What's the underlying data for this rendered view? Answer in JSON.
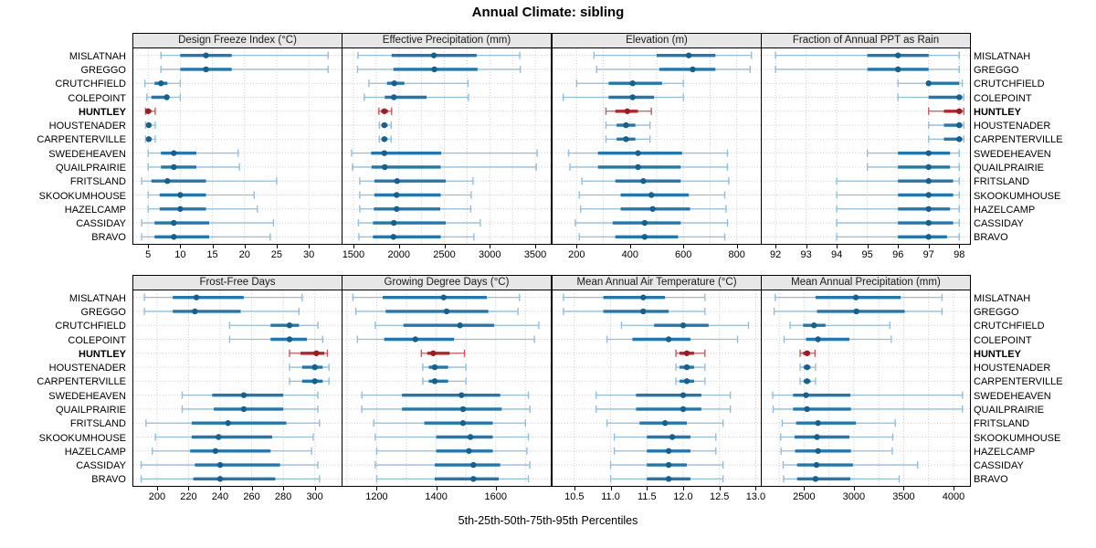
{
  "title": "Annual Climate: sibling",
  "xlabel": "5th-25th-50th-75th-95th Percentiles",
  "highlight_station": "HUNTLEY",
  "stations": [
    "MISLATNAH",
    "GREGGO",
    "CRUTCHFIELD",
    "COLEPOINT",
    "HUNTLEY",
    "HOUSTENADER",
    "CARPENTERVILLE",
    "SWEDEHEAVEN",
    "QUAILPRAIRIE",
    "FRITSLAND",
    "SKOOKUMHOUSE",
    "HAZELCAMP",
    "CASSIDAY",
    "BRAVO"
  ],
  "colors": {
    "blue": "#1f77b4",
    "blue_light": "#92bedc",
    "blue_dot": "#14618f",
    "red": "#b4232a",
    "red_light": "#c9575d",
    "red_dot": "#9c1b21",
    "grid": "#c8c8c8",
    "header_bg": "#e7e7e7",
    "panel_border": "#000000",
    "text": "#000000"
  },
  "chart_data": [
    {
      "type": "dotplot-range",
      "title": "Design Freeze Index (°C)",
      "percentiles": [
        5,
        25,
        50,
        75,
        95
      ],
      "xlim": [
        2.7,
        35.1
      ],
      "ticks": [
        5,
        10,
        15,
        20,
        25,
        30
      ],
      "tick_labels": [
        "5",
        "10",
        "15",
        "20",
        "25",
        "30"
      ],
      "grid": [
        5,
        10,
        15,
        20,
        25,
        30
      ],
      "values": [
        [
          7,
          10,
          14,
          18,
          33
        ],
        [
          7,
          10,
          14,
          18,
          33
        ],
        [
          4.5,
          6,
          7,
          8,
          10
        ],
        [
          4.8,
          5.5,
          7.9,
          8.2,
          10
        ],
        [
          4.6,
          4.8,
          5,
          5.5,
          6.1
        ],
        [
          4.6,
          4.9,
          5.1,
          5.4,
          6.1
        ],
        [
          4.6,
          4.9,
          5.1,
          5.5,
          6.1
        ],
        [
          5,
          7,
          9,
          12.5,
          19
        ],
        [
          5,
          7,
          9,
          12.5,
          19.2
        ],
        [
          4,
          5.5,
          8,
          14,
          25
        ],
        [
          5,
          6.8,
          10,
          14,
          21.5
        ],
        [
          5,
          6.8,
          10,
          14,
          22
        ],
        [
          4,
          6,
          9,
          14.5,
          24.5
        ],
        [
          4,
          6,
          9,
          14.5,
          24
        ]
      ]
    },
    {
      "type": "dotplot-range",
      "title": "Effective Precipitation (mm)",
      "percentiles": [
        5,
        25,
        50,
        75,
        95
      ],
      "xlim": [
        1380,
        3670
      ],
      "ticks": [
        1500,
        2000,
        2500,
        3000,
        3500
      ],
      "tick_labels": [
        "1500",
        "2000",
        "2500",
        "3000",
        "3500"
      ],
      "grid": [
        1500,
        1750,
        2000,
        2250,
        2500,
        2750,
        3000,
        3250,
        3500
      ],
      "values": [
        [
          1550,
          1920,
          2385,
          2855,
          3330
        ],
        [
          1545,
          1940,
          2390,
          2865,
          3335
        ],
        [
          1670,
          1870,
          1950,
          2060,
          2760
        ],
        [
          1620,
          1845,
          1945,
          2305,
          2765
        ],
        [
          1780,
          1805,
          1840,
          1880,
          1920
        ],
        [
          1785,
          1810,
          1840,
          1875,
          1915
        ],
        [
          1785,
          1810,
          1840,
          1875,
          1915
        ],
        [
          1480,
          1695,
          1840,
          2465,
          3520
        ],
        [
          1490,
          1700,
          1845,
          2460,
          3510
        ],
        [
          1570,
          1730,
          1980,
          2515,
          2815
        ],
        [
          1570,
          1730,
          1975,
          2460,
          2795
        ],
        [
          1570,
          1725,
          1975,
          2455,
          2790
        ],
        [
          1555,
          1715,
          1945,
          2515,
          2895
        ],
        [
          1560,
          1715,
          1940,
          2460,
          2825
        ]
      ]
    },
    {
      "type": "dotplot-range",
      "title": "Elevation (m)",
      "percentiles": [
        5,
        25,
        50,
        75,
        95
      ],
      "xlim": [
        110,
        890
      ],
      "ticks": [
        200,
        400,
        600,
        800
      ],
      "tick_labels": [
        "200",
        "400",
        "600",
        "800"
      ],
      "grid": [
        200,
        300,
        400,
        500,
        600,
        700,
        800
      ],
      "values": [
        [
          265,
          500,
          620,
          720,
          855
        ],
        [
          275,
          510,
          635,
          720,
          850
        ],
        [
          200,
          320,
          410,
          520,
          600
        ],
        [
          150,
          320,
          410,
          490,
          600
        ],
        [
          310,
          345,
          390,
          430,
          480
        ],
        [
          310,
          350,
          385,
          420,
          475
        ],
        [
          310,
          350,
          385,
          420,
          475
        ],
        [
          170,
          280,
          430,
          595,
          765
        ],
        [
          175,
          280,
          430,
          590,
          765
        ],
        [
          220,
          345,
          450,
          590,
          770
        ],
        [
          210,
          365,
          480,
          620,
          755
        ],
        [
          215,
          365,
          485,
          625,
          760
        ],
        [
          195,
          335,
          455,
          590,
          765
        ],
        [
          210,
          345,
          455,
          580,
          755
        ]
      ]
    },
    {
      "type": "dotplot-range",
      "title": "Fraction of Annual PPT as Rain",
      "percentiles": [
        5,
        25,
        50,
        75,
        95
      ],
      "xlim": [
        91.55,
        98.35
      ],
      "ticks": [
        92,
        93,
        94,
        95,
        96,
        97,
        98
      ],
      "tick_labels": [
        "92",
        "93",
        "94",
        "95",
        "96",
        "97",
        "98"
      ],
      "grid": [
        92,
        93,
        94,
        95,
        96,
        97,
        98
      ],
      "values": [
        [
          92,
          95,
          96,
          97,
          98
        ],
        [
          92,
          95,
          96,
          97,
          98
        ],
        [
          96,
          97,
          97,
          98,
          98.1
        ],
        [
          96,
          97,
          98,
          98.1,
          98.15
        ],
        [
          97,
          97.5,
          98,
          98.1,
          98.15
        ],
        [
          97,
          97.5,
          98,
          98.1,
          98.15
        ],
        [
          97,
          97.5,
          98,
          98.1,
          98.15
        ],
        [
          95,
          96,
          97,
          97.7,
          98
        ],
        [
          95,
          96,
          97,
          97.7,
          98
        ],
        [
          94,
          96,
          97,
          97.8,
          98
        ],
        [
          94,
          96,
          97,
          97.8,
          98
        ],
        [
          94,
          96,
          97,
          97.7,
          98
        ],
        [
          94,
          96,
          97,
          97.8,
          98
        ],
        [
          94,
          96,
          97,
          97.6,
          98
        ]
      ]
    },
    {
      "type": "dotplot-range",
      "title": "Frost-Free Days",
      "percentiles": [
        5,
        25,
        50,
        75,
        95
      ],
      "xlim": [
        185,
        317
      ],
      "ticks": [
        200,
        220,
        240,
        260,
        280,
        300
      ],
      "tick_labels": [
        "200",
        "220",
        "240",
        "260",
        "280",
        "300"
      ],
      "grid": [
        200,
        220,
        240,
        260,
        280,
        300
      ],
      "values": [
        [
          192,
          210,
          225,
          255,
          292
        ],
        [
          192,
          210,
          224,
          253,
          290
        ],
        [
          246,
          272,
          284,
          290,
          302
        ],
        [
          246,
          272,
          284,
          295,
          305
        ],
        [
          284,
          291,
          301,
          306,
          308
        ],
        [
          284,
          292,
          300,
          305,
          309
        ],
        [
          284,
          292,
          300,
          305,
          309
        ],
        [
          216,
          235,
          255,
          280,
          302
        ],
        [
          216,
          236,
          255,
          280,
          302
        ],
        [
          193,
          222,
          245,
          282,
          303
        ],
        [
          199,
          222,
          239,
          273,
          299
        ],
        [
          197,
          221,
          237,
          272,
          298
        ],
        [
          190,
          224,
          240,
          278,
          302
        ],
        [
          190,
          223,
          240,
          275,
          303
        ]
      ]
    },
    {
      "type": "dotplot-range",
      "title": "Growing Degree Days (°C)",
      "percentiles": [
        5,
        25,
        50,
        75,
        95
      ],
      "xlim": [
        1085,
        1785
      ],
      "ticks": [
        1200,
        1400,
        1600
      ],
      "tick_labels": [
        "1200",
        "1400",
        "1600"
      ],
      "grid": [
        1100,
        1200,
        1300,
        1400,
        1500,
        1600,
        1700
      ],
      "values": [
        [
          1120,
          1220,
          1425,
          1570,
          1680
        ],
        [
          1130,
          1230,
          1435,
          1575,
          1675
        ],
        [
          1195,
          1290,
          1480,
          1595,
          1745
        ],
        [
          1135,
          1225,
          1330,
          1460,
          1730
        ],
        [
          1350,
          1370,
          1390,
          1445,
          1495
        ],
        [
          1355,
          1375,
          1395,
          1440,
          1500
        ],
        [
          1355,
          1375,
          1395,
          1440,
          1500
        ],
        [
          1150,
          1285,
          1485,
          1615,
          1710
        ],
        [
          1150,
          1285,
          1490,
          1620,
          1715
        ],
        [
          1190,
          1360,
          1490,
          1590,
          1700
        ],
        [
          1195,
          1400,
          1515,
          1590,
          1710
        ],
        [
          1200,
          1400,
          1510,
          1590,
          1705
        ],
        [
          1195,
          1395,
          1525,
          1615,
          1715
        ],
        [
          1200,
          1395,
          1525,
          1610,
          1710
        ]
      ]
    },
    {
      "type": "dotplot-range",
      "title": "Mean Annual Air Temperature (°C)",
      "percentiles": [
        5,
        25,
        50,
        75,
        95
      ],
      "xlim": [
        10.2,
        13.07
      ],
      "ticks": [
        10.5,
        11,
        11.5,
        12,
        12.5,
        13
      ],
      "tick_labels": [
        "10.5",
        "11.0",
        "11.5",
        "12.0",
        "12.5",
        "13.0"
      ],
      "grid": [
        10.5,
        11,
        11.5,
        12,
        12.5,
        13
      ],
      "values": [
        [
          10.35,
          10.9,
          11.45,
          11.75,
          12.3
        ],
        [
          10.35,
          10.9,
          11.45,
          11.8,
          12.3
        ],
        [
          11.15,
          11.6,
          12.0,
          12.35,
          12.9
        ],
        [
          10.95,
          11.3,
          11.8,
          12.1,
          12.75
        ],
        [
          11.9,
          11.95,
          12.05,
          12.15,
          12.3
        ],
        [
          11.9,
          11.95,
          12.05,
          12.15,
          12.3
        ],
        [
          11.9,
          11.95,
          12.05,
          12.15,
          12.3
        ],
        [
          10.8,
          11.35,
          12.0,
          12.25,
          12.65
        ],
        [
          10.8,
          11.35,
          12.0,
          12.25,
          12.65
        ],
        [
          10.95,
          11.4,
          11.75,
          12.05,
          12.55
        ],
        [
          11.05,
          11.5,
          11.85,
          12.1,
          12.45
        ],
        [
          11.05,
          11.5,
          11.8,
          12.1,
          12.45
        ],
        [
          11.0,
          11.5,
          11.8,
          12.05,
          12.55
        ],
        [
          11.0,
          11.5,
          11.8,
          12.1,
          12.55
        ]
      ]
    },
    {
      "type": "dotplot-range",
      "title": "Mean Annual Precipitation (mm)",
      "percentiles": [
        5,
        25,
        50,
        75,
        95
      ],
      "xlim": [
        2075,
        4165
      ],
      "ticks": [
        2500,
        3000,
        3500,
        4000
      ],
      "tick_labels": [
        "2500",
        "3000",
        "3500",
        "4000"
      ],
      "grid": [
        2250,
        2500,
        2750,
        3000,
        3250,
        3500,
        3750,
        4000
      ],
      "values": [
        [
          2210,
          2615,
          3020,
          3470,
          3885
        ],
        [
          2200,
          2630,
          3025,
          3510,
          3885
        ],
        [
          2360,
          2490,
          2600,
          2715,
          3360
        ],
        [
          2300,
          2520,
          2640,
          2955,
          3375
        ],
        [
          2460,
          2490,
          2530,
          2560,
          2610
        ],
        [
          2460,
          2495,
          2530,
          2565,
          2615
        ],
        [
          2460,
          2495,
          2530,
          2565,
          2615
        ],
        [
          2185,
          2390,
          2520,
          2965,
          4090
        ],
        [
          2190,
          2390,
          2530,
          2970,
          4090
        ],
        [
          2280,
          2420,
          2640,
          3020,
          3415
        ],
        [
          2265,
          2405,
          2630,
          2955,
          3390
        ],
        [
          2270,
          2410,
          2640,
          2970,
          3385
        ],
        [
          2290,
          2430,
          2625,
          2990,
          3640
        ],
        [
          2295,
          2430,
          2615,
          2965,
          3455
        ]
      ]
    }
  ]
}
